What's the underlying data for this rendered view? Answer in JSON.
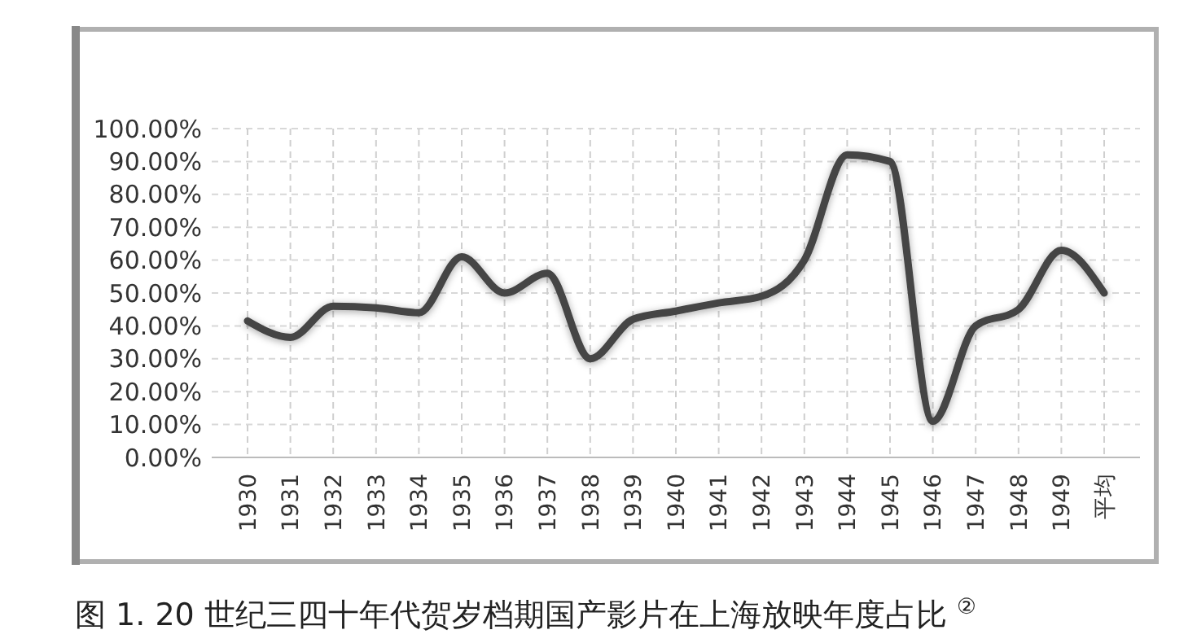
{
  "chart_data": {
    "type": "line",
    "title": "图 1. 20 世纪三四十年代贺岁档期国产影片在上海放映年度占比 $^{②}$",
    "categories": [
      "1930",
      "1931",
      "1932",
      "1933",
      "1934",
      "1935",
      "1936",
      "1937",
      "1938",
      "1939",
      "1940",
      "1941",
      "1942",
      "1943",
      "1944",
      "1945",
      "1946",
      "1947",
      "1948",
      "1949",
      "平均"
    ],
    "series": [
      {
        "color": "#454545",
        "values": [
          41.5,
          36.5,
          46,
          45.5,
          44,
          61,
          50,
          56,
          30,
          42,
          44.5,
          47,
          49,
          60,
          92,
          90,
          11,
          40,
          45,
          63,
          50
        ]
      }
    ],
    "ylim": [
      0,
      100
    ],
    "yticks": [
      {
        "value": 0,
        "label": "0.00%"
      },
      {
        "value": 10,
        "label": "10.00%"
      },
      {
        "value": 20,
        "label": "20.00%"
      },
      {
        "value": 30,
        "label": "30.00%"
      },
      {
        "value": 40,
        "label": "40.00%"
      },
      {
        "value": 50,
        "label": "50.00%"
      },
      {
        "value": 60,
        "label": "60.00%"
      },
      {
        "value": 70,
        "label": "70.00%"
      },
      {
        "value": 80,
        "label": "80.00%"
      },
      {
        "value": 90,
        "label": "90.00%"
      },
      {
        "value": 100,
        "label": "100.00%"
      }
    ],
    "grid": true,
    "marker": "none",
    "line_style": "solid"
  }
}
